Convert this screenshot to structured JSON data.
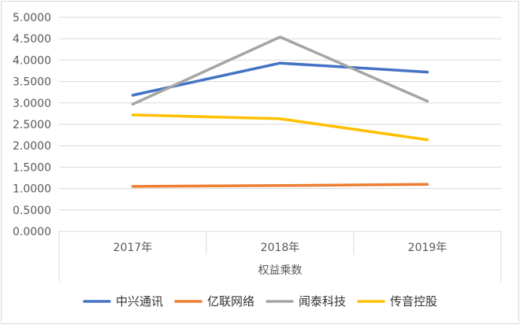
{
  "chart_data": {
    "type": "line",
    "categories": [
      "2017年",
      "2018年",
      "2019年"
    ],
    "y_ticks": [
      "0.0000",
      "0.5000",
      "1.0000",
      "1.5000",
      "2.0000",
      "2.5000",
      "3.0000",
      "3.5000",
      "4.0000",
      "4.5000",
      "5.0000"
    ],
    "ylim": [
      0,
      5
    ],
    "grid": true,
    "xlabel": "权益乘数",
    "legend_position": "bottom",
    "series": [
      {
        "name": "中兴通讯",
        "color": "#4472C4",
        "values": [
          3.18,
          3.93,
          3.72
        ]
      },
      {
        "name": "亿联网络",
        "color": "#ED7D31",
        "values": [
          1.05,
          1.07,
          1.1
        ]
      },
      {
        "name": "闻泰科技",
        "color": "#A5A5A5",
        "values": [
          2.97,
          4.54,
          3.04
        ]
      },
      {
        "name": "传音控股",
        "color": "#FFC000",
        "values": [
          2.72,
          2.63,
          2.14
        ]
      }
    ]
  }
}
